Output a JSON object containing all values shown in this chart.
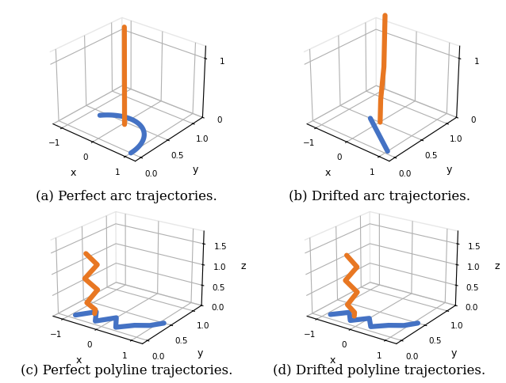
{
  "blue_color": "#4472C4",
  "orange_color": "#E87722",
  "line_width": 4.5,
  "fig_width": 6.38,
  "fig_height": 4.84,
  "caption_a": "(a) Perfect arc trajectories.",
  "caption_b": "(b) Drifted arc trajectories.",
  "caption_c": "(c) Perfect polyline trajectories.",
  "caption_d": "(d) Drifted polyline trajectories.",
  "caption_fontsize": 12,
  "elev_arc": 28,
  "azim_arc": -50,
  "elev_poly": 22,
  "azim_poly": -55
}
